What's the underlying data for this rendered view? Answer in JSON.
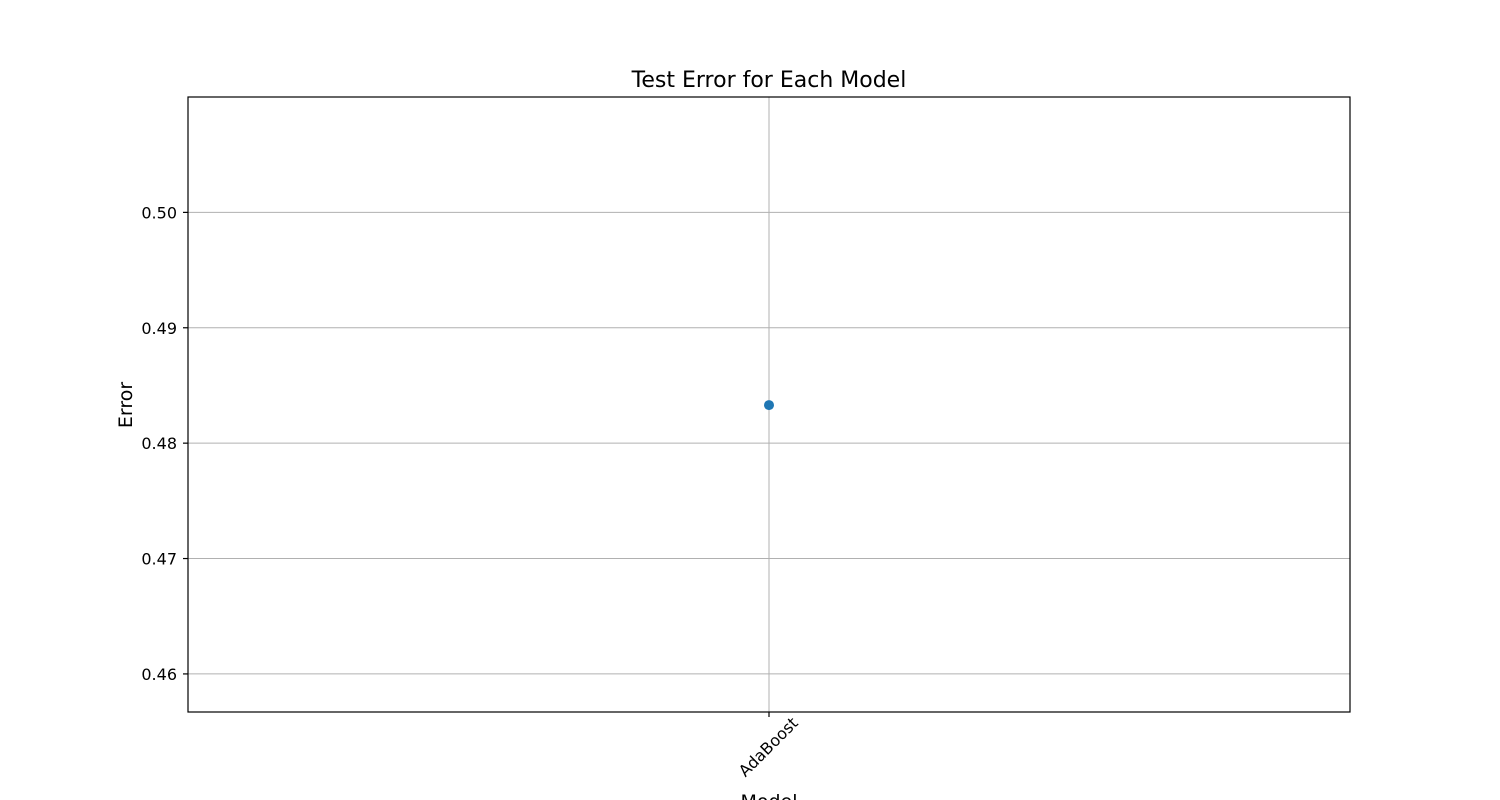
{
  "chart_data": {
    "type": "scatter",
    "title": "Test Error for Each Model",
    "xlabel": "Model",
    "ylabel": "Error",
    "categories": [
      "AdaBoost"
    ],
    "series": [
      {
        "values": [
          0.4833
        ],
        "color": "#1f77b4"
      }
    ],
    "ylim": [
      0.4567,
      0.51
    ],
    "yticks": [
      0.46,
      0.47,
      0.48,
      0.49,
      0.5
    ],
    "ytick_labels": [
      "0.46",
      "0.47",
      "0.48",
      "0.49",
      "0.50"
    ],
    "xtick_rotation": 45,
    "grid": true
  }
}
